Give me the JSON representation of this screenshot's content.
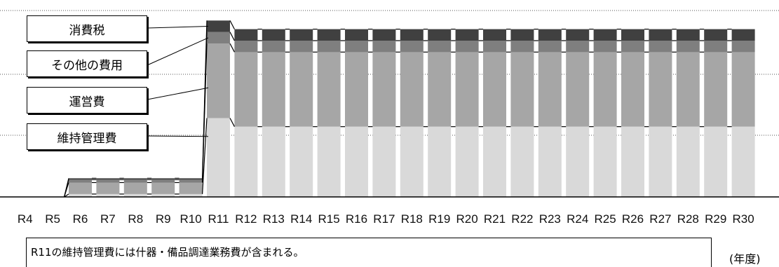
{
  "chart_data": {
    "type": "bar",
    "stacked": true,
    "categories": [
      "R4",
      "R5",
      "R6",
      "R7",
      "R8",
      "R9",
      "R10",
      "R11",
      "R12",
      "R13",
      "R14",
      "R15",
      "R16",
      "R17",
      "R18",
      "R19",
      "R20",
      "R21",
      "R22",
      "R23",
      "R24",
      "R25",
      "R26",
      "R27",
      "R28",
      "R29",
      "R30"
    ],
    "series": [
      {
        "name": "維持管理費",
        "color": "#d9d9d9",
        "values": [
          0,
          0,
          2,
          2,
          2,
          2,
          2,
          55,
          49,
          49,
          49,
          49,
          49,
          49,
          49,
          49,
          49,
          49,
          49,
          49,
          49,
          49,
          49,
          49,
          49,
          49,
          49
        ]
      },
      {
        "name": "運営費",
        "color": "#a6a6a6",
        "values": [
          0,
          0,
          8,
          8,
          8,
          8,
          8,
          52,
          52,
          52,
          52,
          52,
          52,
          52,
          52,
          52,
          52,
          52,
          52,
          52,
          52,
          52,
          52,
          52,
          52,
          52,
          52
        ]
      },
      {
        "name": "その他の費用",
        "color": "#7f7f7f",
        "values": [
          0,
          0,
          2,
          2,
          2,
          2,
          2,
          8,
          8,
          8,
          8,
          8,
          8,
          8,
          8,
          8,
          8,
          8,
          8,
          8,
          8,
          8,
          8,
          8,
          8,
          8,
          8
        ]
      },
      {
        "name": "消費税",
        "color": "#404040",
        "values": [
          0,
          0,
          1,
          1,
          1,
          1,
          1,
          8,
          8,
          8,
          8,
          8,
          8,
          8,
          8,
          8,
          8,
          8,
          8,
          8,
          8,
          8,
          8,
          8,
          8,
          8,
          8
        ]
      }
    ],
    "ylim": [
      0,
      130
    ],
    "grid": true,
    "xlabel": "",
    "ylabel": ""
  },
  "legend_labels": [
    "消費税",
    "その他の費用",
    "運営費",
    "維持管理費"
  ],
  "note": "R11の維持管理費には什器・備品調達業務費が含まれる。",
  "unit": "(年度)"
}
